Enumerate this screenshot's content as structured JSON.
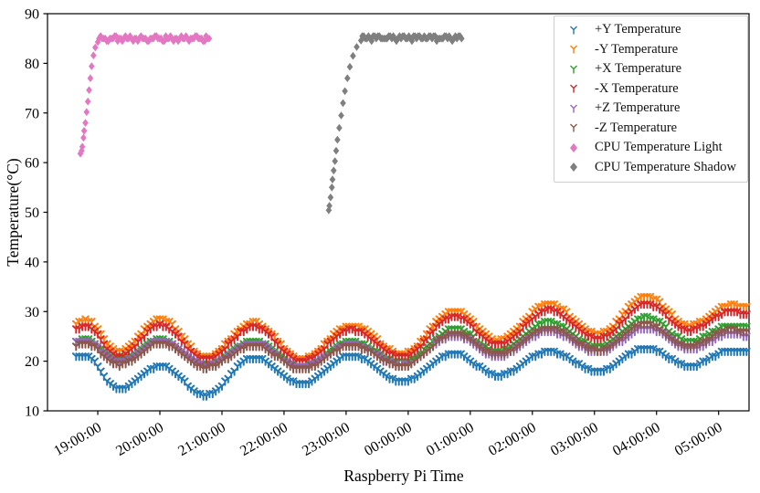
{
  "figure_title": "",
  "chart_data": {
    "type": "scatter",
    "title": "",
    "xlabel": "Raspberry Pi Time",
    "ylabel": "Temperature(°C)",
    "x_ticks": [
      "19:00:00",
      "20:00:00",
      "21:00:00",
      "22:00:00",
      "23:00:00",
      "00:00:00",
      "01:00:00",
      "02:00:00",
      "03:00:00",
      "04:00:00",
      "05:00:00"
    ],
    "x_tick_hours": [
      0,
      1,
      2,
      3,
      4,
      5,
      6,
      7,
      8,
      9,
      10
    ],
    "x_unit": "hours after 19:00:00",
    "xlim_hours": [
      -0.81,
      10.49
    ],
    "y_ticks": [
      10,
      20,
      30,
      40,
      50,
      60,
      70,
      80,
      90
    ],
    "ylim": [
      10,
      90
    ],
    "grid": false,
    "legend_position": "upper right",
    "axis_color": "#000000",
    "panel_t_start": -0.35,
    "panel_t_end": 10.46,
    "sample_step_hours": 0.05,
    "quantize_c": 0.5,
    "keyframe_hours": [
      -0.35,
      -0.2,
      0.34,
      1.01,
      1.74,
      2.51,
      3.28,
      4.09,
      4.9,
      5.75,
      6.44,
      7.26,
      8.06,
      8.84,
      9.53,
      10.2,
      10.46
    ],
    "series": [
      {
        "name": "+Y Temperature",
        "color": "#1f77b4",
        "marker": "tri_down",
        "temps": [
          21.0,
          21.0,
          14.4,
          19.0,
          13.2,
          20.7,
          15.4,
          21.2,
          16.0,
          21.5,
          17.1,
          21.9,
          18.0,
          22.7,
          19.0,
          22.2,
          21.9
        ]
      },
      {
        "name": "-Y Temperature",
        "color": "#ff7f0e",
        "marker": "tri_down",
        "temps": [
          27.6,
          28.3,
          22.0,
          28.5,
          20.9,
          27.8,
          20.4,
          27.2,
          21.5,
          30.2,
          24.2,
          31.5,
          25.6,
          33.0,
          27.2,
          31.3,
          30.8
        ]
      },
      {
        "name": "+X Temperature",
        "color": "#2ca02c",
        "marker": "tri_down",
        "temps": [
          24.0,
          24.4,
          20.3,
          24.4,
          19.4,
          24.0,
          19.0,
          23.9,
          19.8,
          26.6,
          22.0,
          27.9,
          23.0,
          28.8,
          24.0,
          27.2,
          26.8
        ]
      },
      {
        "name": "-X Temperature",
        "color": "#d62728",
        "marker": "tri_down",
        "temps": [
          26.5,
          27.2,
          21.0,
          27.3,
          20.3,
          26.9,
          20.0,
          26.3,
          20.9,
          29.0,
          23.4,
          30.3,
          24.6,
          31.5,
          26.2,
          30.0,
          29.3
        ]
      },
      {
        "name": "+Z Temperature",
        "color": "#9467bd",
        "marker": "tri_down",
        "temps": [
          23.8,
          24.1,
          19.7,
          24.1,
          19.1,
          23.7,
          18.8,
          23.4,
          19.2,
          25.1,
          21.0,
          26.0,
          21.8,
          26.7,
          22.4,
          25.5,
          25.1
        ]
      },
      {
        "name": "-Z Temperature",
        "color": "#8c564b",
        "marker": "tri_down",
        "temps": [
          23.2,
          23.6,
          19.2,
          23.6,
          18.7,
          23.2,
          18.4,
          23.1,
          19.0,
          25.6,
          21.4,
          26.7,
          22.2,
          27.5,
          23.0,
          26.3,
          25.9
        ]
      },
      {
        "name": "CPU Temperature Light",
        "color": "#e377c2",
        "marker": "diamond",
        "rise_points": [
          [
            -0.28,
            61.8
          ],
          [
            -0.26,
            62.4
          ],
          [
            -0.25,
            63.2
          ],
          [
            -0.23,
            65.0
          ],
          [
            -0.22,
            66.4
          ],
          [
            -0.2,
            68.0
          ],
          [
            -0.18,
            70.2
          ],
          [
            -0.16,
            72.3
          ],
          [
            -0.14,
            74.6
          ],
          [
            -0.12,
            77.0
          ],
          [
            -0.1,
            79.4
          ],
          [
            -0.07,
            81.6
          ],
          [
            -0.04,
            83.2
          ],
          [
            0.0,
            84.3
          ]
        ],
        "plateau": {
          "t_start": 0.02,
          "t_end": 1.8,
          "value": 85.0,
          "spread": 0.55
        }
      },
      {
        "name": "CPU Temperature Shadow",
        "color": "#7f7f7f",
        "marker": "diamond",
        "rise_points": [
          [
            3.72,
            50.4
          ],
          [
            3.73,
            51.3
          ],
          [
            3.75,
            53.0
          ],
          [
            3.77,
            55.0
          ],
          [
            3.78,
            56.6
          ],
          [
            3.8,
            58.4
          ],
          [
            3.82,
            60.3
          ],
          [
            3.84,
            62.4
          ],
          [
            3.86,
            64.6
          ],
          [
            3.89,
            67.0
          ],
          [
            3.92,
            69.5
          ],
          [
            3.95,
            72.0
          ],
          [
            3.98,
            74.4
          ],
          [
            4.02,
            77.0
          ],
          [
            4.06,
            79.3
          ],
          [
            4.11,
            81.5
          ],
          [
            4.17,
            83.3
          ],
          [
            4.24,
            84.6
          ]
        ],
        "plateau": {
          "t_start": 4.26,
          "t_end": 5.88,
          "value": 85.2,
          "spread": 0.55
        }
      }
    ]
  }
}
